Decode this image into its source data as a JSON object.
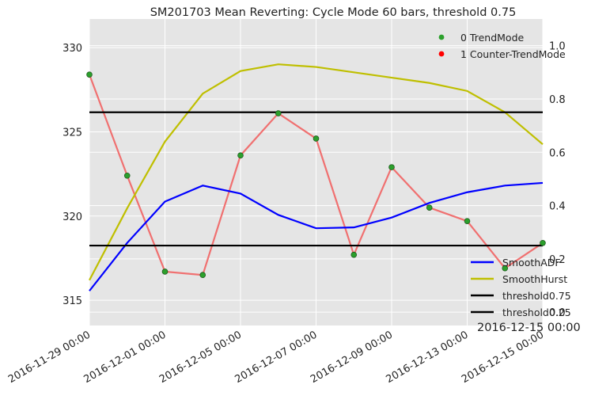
{
  "chart_data": {
    "type": "line",
    "title": "SM201703 Mean Reverting: Cycle Mode 60 bars, threshold 0.75",
    "x_tick_labels": [
      "2016-11-29 00:00",
      "2016-12-01 00:00",
      "2016-12-05 00:00",
      "2016-12-07 00:00",
      "2016-12-09 00:00",
      "2016-12-13 00:00",
      "2016-12-15 00:00"
    ],
    "left_axis": {
      "ticks": [
        "315",
        "320",
        "325",
        "330"
      ],
      "range": [
        313.5,
        331.7
      ]
    },
    "right_axis": {
      "ticks": [
        "0.0",
        "0.2",
        "0.4",
        "0.6",
        "0.8",
        "1.0"
      ],
      "range": [
        -0.05,
        1.1
      ]
    },
    "price": {
      "color": "#f07070",
      "values": [
        328.4,
        322.4,
        316.7,
        316.5,
        323.6,
        326.1,
        324.6,
        317.7,
        322.9,
        320.5,
        319.7,
        316.9,
        318.4
      ]
    },
    "modes": [
      0,
      0,
      0,
      0,
      0,
      0,
      0,
      0,
      0,
      0,
      0,
      0,
      0
    ],
    "series": [
      {
        "name": "SmoothADF",
        "color": "#0000ff",
        "axis": "right",
        "values": [
          0.08,
          0.26,
          0.415,
          0.475,
          0.445,
          0.365,
          0.315,
          0.318,
          0.355,
          0.41,
          0.45,
          0.475,
          0.485
        ]
      },
      {
        "name": "SmoothHurst",
        "color": "#bfbf00",
        "axis": "right",
        "values": [
          0.12,
          0.39,
          0.64,
          0.82,
          0.905,
          0.93,
          0.92,
          0.9,
          0.88,
          0.86,
          0.83,
          0.75,
          0.63
        ]
      },
      {
        "name": "threshold0.75",
        "color": "#000000",
        "axis": "right",
        "values": [
          0.75,
          0.75,
          0.75,
          0.75,
          0.75,
          0.75,
          0.75,
          0.75,
          0.75,
          0.75,
          0.75,
          0.75,
          0.75
        ]
      },
      {
        "name": "threshold0.25",
        "color": "#000000",
        "axis": "right",
        "values": [
          0.25,
          0.25,
          0.25,
          0.25,
          0.25,
          0.25,
          0.25,
          0.25,
          0.25,
          0.25,
          0.25,
          0.25,
          0.25
        ]
      }
    ],
    "marker_legend": [
      {
        "label": "0 TrendMode",
        "color": "#2ca02c"
      },
      {
        "label": "1 Counter-TrendMode",
        "color": "#ff0000"
      }
    ],
    "line_legend_position": "lower-right",
    "marker_legend_position": "upper-right",
    "annotation": "2016-12-15 00:00",
    "grid": true,
    "background": "#e5e5e5",
    "grid_color": "#ffffff"
  }
}
